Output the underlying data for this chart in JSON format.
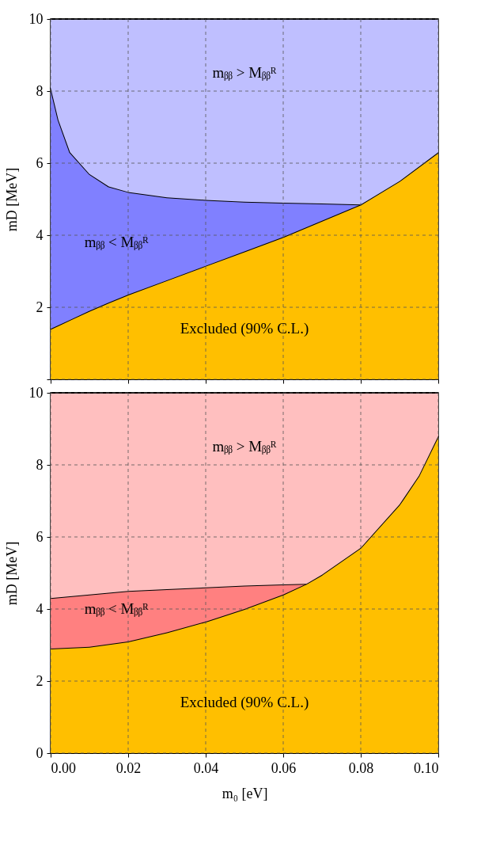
{
  "chart_data": [
    {
      "type": "area",
      "ylabel": "mD [MeV]",
      "xlim": [
        0,
        0.1
      ],
      "ylim": [
        0,
        10
      ],
      "xticks": [
        {
          "value": 0,
          "label": null
        },
        {
          "value": 0.02,
          "label": null
        },
        {
          "value": 0.04,
          "label": null
        },
        {
          "value": 0.06,
          "label": null
        },
        {
          "value": 0.08,
          "label": null
        },
        {
          "value": 0.1,
          "label": null
        }
      ],
      "yticks": [
        {
          "value": 0,
          "label": null
        },
        2,
        4,
        6,
        8,
        10
      ],
      "grid": true,
      "tick_labels": "y",
      "line_style": "solid",
      "stacked": true,
      "x": [
        0,
        0.002,
        0.005,
        0.01,
        0.015,
        0.02,
        0.03,
        0.04,
        0.05,
        0.06,
        0.07,
        0.08,
        0.09,
        0.1
      ],
      "series": [
        {
          "color": "#ffbf00",
          "values": [
            1.4,
            1.5,
            1.65,
            1.9,
            2.13,
            2.35,
            2.75,
            3.15,
            3.55,
            3.95,
            4.4,
            4.85,
            5.5,
            6.3
          ]
        },
        {
          "color": "#8080ff",
          "values": [
            6.7,
            5.7,
            4.65,
            3.8,
            3.22,
            2.85,
            2.3,
            1.83,
            1.38,
            0.95,
            0.48,
            0,
            null,
            null
          ]
        },
        {
          "color": "#bfbfff",
          "values": [
            1.9,
            2.8,
            3.7,
            4.3,
            4.65,
            4.8,
            4.95,
            5.02,
            5.07,
            5.1,
            5.12,
            5.15,
            4.5,
            3.7
          ]
        }
      ],
      "annotations": [
        "mᵦᵦ > Mᵦᵦᴿ",
        "mᵦᵦ < Mᵦᵦᴿ",
        "Excluded (90% C.L.)"
      ]
    },
    {
      "type": "area",
      "xlabel": "m₀ [eV]",
      "ylabel": "mD [MeV]",
      "xlim": [
        0,
        0.1
      ],
      "ylim": [
        0,
        10
      ],
      "xticks": [
        {
          "value": 0,
          "label": "0.00"
        },
        {
          "value": 0.02,
          "label": "0.02"
        },
        {
          "value": 0.04,
          "label": "0.04"
        },
        {
          "value": 0.06,
          "label": "0.06"
        },
        {
          "value": 0.08,
          "label": "0.08"
        },
        {
          "value": 0.1,
          "label": "0.10"
        }
      ],
      "yticks": [
        0,
        2,
        4,
        6,
        8,
        10
      ],
      "grid": true,
      "line_style": "solid",
      "stacked": true,
      "x": [
        0,
        0.01,
        0.02,
        0.03,
        0.04,
        0.05,
        0.06,
        0.066,
        0.07,
        0.08,
        0.09,
        0.095,
        0.1
      ],
      "series": [
        {
          "color": "#ffbf00",
          "values": [
            2.9,
            2.95,
            3.1,
            3.35,
            3.65,
            4.0,
            4.4,
            4.7,
            4.95,
            5.7,
            6.9,
            7.7,
            8.8
          ]
        },
        {
          "color": "#ff8080",
          "values": [
            1.4,
            1.45,
            1.4,
            1.2,
            0.95,
            0.65,
            0.28,
            0,
            null,
            null,
            null,
            null,
            null
          ]
        },
        {
          "color": "#ffbfbf",
          "values": [
            5.7,
            5.6,
            5.5,
            5.45,
            5.4,
            5.35,
            5.32,
            5.3,
            5.05,
            4.3,
            3.1,
            2.3,
            1.2
          ]
        }
      ],
      "annotations": [
        "mᵦᵦ > Mᵦᵦᴿ",
        "mᵦᵦ < Mᵦᵦᴿ",
        "Excluded (90% C.L.)"
      ]
    }
  ]
}
